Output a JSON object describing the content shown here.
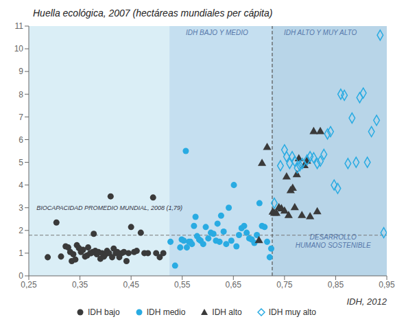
{
  "chart_data": {
    "type": "scatter",
    "title": "Huella ecológica, 2007 (hectáreas mundiales per cápita)",
    "xlabel": "IDH, 2012",
    "xlim": [
      0.25,
      0.95
    ],
    "xticks": [
      {
        "value": 0.25,
        "label": "0,25"
      },
      {
        "value": 0.35,
        "label": "0,35"
      },
      {
        "value": 0.45,
        "label": "0,45"
      },
      {
        "value": 0.55,
        "label": "0,55"
      },
      {
        "value": 0.65,
        "label": "0,65"
      },
      {
        "value": 0.75,
        "label": "0,75"
      },
      {
        "value": 0.85,
        "label": "0,85"
      },
      {
        "value": 0.95,
        "label": "0,95"
      }
    ],
    "ylim": [
      0,
      11
    ],
    "yticks": [
      0,
      1,
      2,
      3,
      4,
      5,
      6,
      7,
      8,
      9,
      10,
      11
    ],
    "grid": true,
    "legend": "bottom",
    "zones": [
      {
        "from": 0.25,
        "to": 0.525,
        "color": "#daeef6"
      },
      {
        "from": 0.525,
        "to": 0.726,
        "color": "#c5dff0"
      },
      {
        "from": 0.726,
        "to": 0.95,
        "color": "#b8d5e8"
      }
    ],
    "reference_lines": [
      {
        "axis": "y",
        "value": 1.79,
        "label": "BIOCAPACIDAD PROMEDIO MUNDIAL, 2008 (1,79)",
        "label_x": 0.265,
        "label_y": 3.0
      },
      {
        "axis": "x",
        "value": 0.726
      }
    ],
    "annotations": [
      {
        "text": "IDH BAJO Y MEDIO",
        "x": 0.618,
        "y": 10.72
      },
      {
        "text": "IDH ALTO Y MUY ALTO",
        "x": 0.82,
        "y": 10.72
      },
      {
        "text": "DESARROLLO",
        "x": 0.845,
        "y": 1.72
      },
      {
        "text": "HUMANO SOSTENIBLE",
        "x": 0.845,
        "y": 1.35
      }
    ],
    "series": [
      {
        "name": "IDH bajo",
        "color": "#3a3a3a",
        "marker": "circle",
        "x": [
          0.287,
          0.304,
          0.313,
          0.322,
          0.327,
          0.331,
          0.334,
          0.337,
          0.341,
          0.344,
          0.348,
          0.352,
          0.356,
          0.36,
          0.364,
          0.366,
          0.37,
          0.372,
          0.375,
          0.377,
          0.38,
          0.383,
          0.386,
          0.39,
          0.393,
          0.397,
          0.4,
          0.403,
          0.407,
          0.41,
          0.413,
          0.416,
          0.42,
          0.423,
          0.427,
          0.432,
          0.436,
          0.441,
          0.445,
          0.45,
          0.456,
          0.461,
          0.469,
          0.476,
          0.483,
          0.493,
          0.499,
          0.506,
          0.513
        ],
        "values": [
          0.82,
          2.35,
          0.85,
          1.3,
          1.25,
          1.05,
          0.65,
          0.95,
          0.72,
          1.35,
          1.22,
          1.05,
          1.15,
          0.85,
          0.9,
          1.25,
          1.0,
          1.0,
          1.05,
          1.85,
          1.1,
          0.95,
          1.05,
          0.75,
          1.0,
          0.85,
          0.95,
          1.1,
          1.0,
          3.5,
          0.82,
          1.2,
          1.0,
          1.05,
          0.82,
          1.0,
          1.05,
          0.65,
          1.0,
          2.15,
          1.05,
          1.1,
          1.9,
          1.0,
          1.0,
          3.45,
          1.0,
          0.82,
          1.0
        ]
      },
      {
        "name": "IDH medio",
        "color": "#29abe2",
        "marker": "circle",
        "x": [
          0.527,
          0.536,
          0.546,
          0.549,
          0.553,
          0.557,
          0.559,
          0.563,
          0.566,
          0.569,
          0.573,
          0.576,
          0.579,
          0.583,
          0.586,
          0.591,
          0.596,
          0.601,
          0.606,
          0.611,
          0.616,
          0.619,
          0.623,
          0.626,
          0.631,
          0.636,
          0.641,
          0.646,
          0.651,
          0.656,
          0.661,
          0.666,
          0.671,
          0.676,
          0.681,
          0.686,
          0.691,
          0.696,
          0.701,
          0.706,
          0.711,
          0.716,
          0.721,
          0.724
        ],
        "values": [
          1.5,
          0.45,
          1.25,
          1.6,
          1.55,
          5.5,
          1.25,
          1.5,
          1.5,
          1.4,
          2.2,
          2.6,
          1.75,
          1.6,
          1.55,
          1.4,
          2.15,
          1.65,
          1.9,
          1.85,
          1.55,
          2.3,
          1.5,
          2.65,
          1.95,
          1.4,
          3.0,
          1.55,
          4.0,
          1.3,
          1.8,
          2.1,
          2.2,
          1.9,
          1.65,
          1.6,
          1.45,
          1.8,
          3.2,
          2.2,
          2.15,
          1.5,
          0.82,
          1.2
        ]
      },
      {
        "name": "IDH alto",
        "color": "#3a3a3a",
        "marker": "triangle",
        "x": [
          0.7,
          0.706,
          0.716,
          0.727,
          0.73,
          0.734,
          0.739,
          0.744,
          0.75,
          0.754,
          0.758,
          0.762,
          0.766,
          0.77,
          0.774,
          0.778,
          0.784,
          0.789,
          0.794,
          0.8,
          0.807,
          0.814,
          0.82
        ],
        "values": [
          1.55,
          4.95,
          5.65,
          2.8,
          2.75,
          2.75,
          3.0,
          2.95,
          2.85,
          4.35,
          2.65,
          3.75,
          3.85,
          3.0,
          4.45,
          5.15,
          2.65,
          4.85,
          5.05,
          2.6,
          6.35,
          2.82,
          6.35
        ]
      },
      {
        "name": "IDH muy alto",
        "color": "#29abe2",
        "marker": "diamond_open",
        "x": [
          0.73,
          0.742,
          0.75,
          0.754,
          0.76,
          0.765,
          0.77,
          0.775,
          0.78,
          0.785,
          0.794,
          0.8,
          0.807,
          0.814,
          0.82,
          0.827,
          0.834,
          0.84,
          0.847,
          0.854,
          0.86,
          0.867,
          0.874,
          0.882,
          0.89,
          0.897,
          0.904,
          0.912,
          0.92,
          0.93,
          0.937,
          0.944
        ],
        "values": [
          3.2,
          4.85,
          5.55,
          5.25,
          4.95,
          5.25,
          5.05,
          4.75,
          4.85,
          4.95,
          5.1,
          5.25,
          5.2,
          4.95,
          5.05,
          5.35,
          6.25,
          6.35,
          4.0,
          3.85,
          8.0,
          7.95,
          4.95,
          6.95,
          5.0,
          7.85,
          8.05,
          5.0,
          6.35,
          6.85,
          10.6,
          1.9
        ]
      }
    ]
  }
}
